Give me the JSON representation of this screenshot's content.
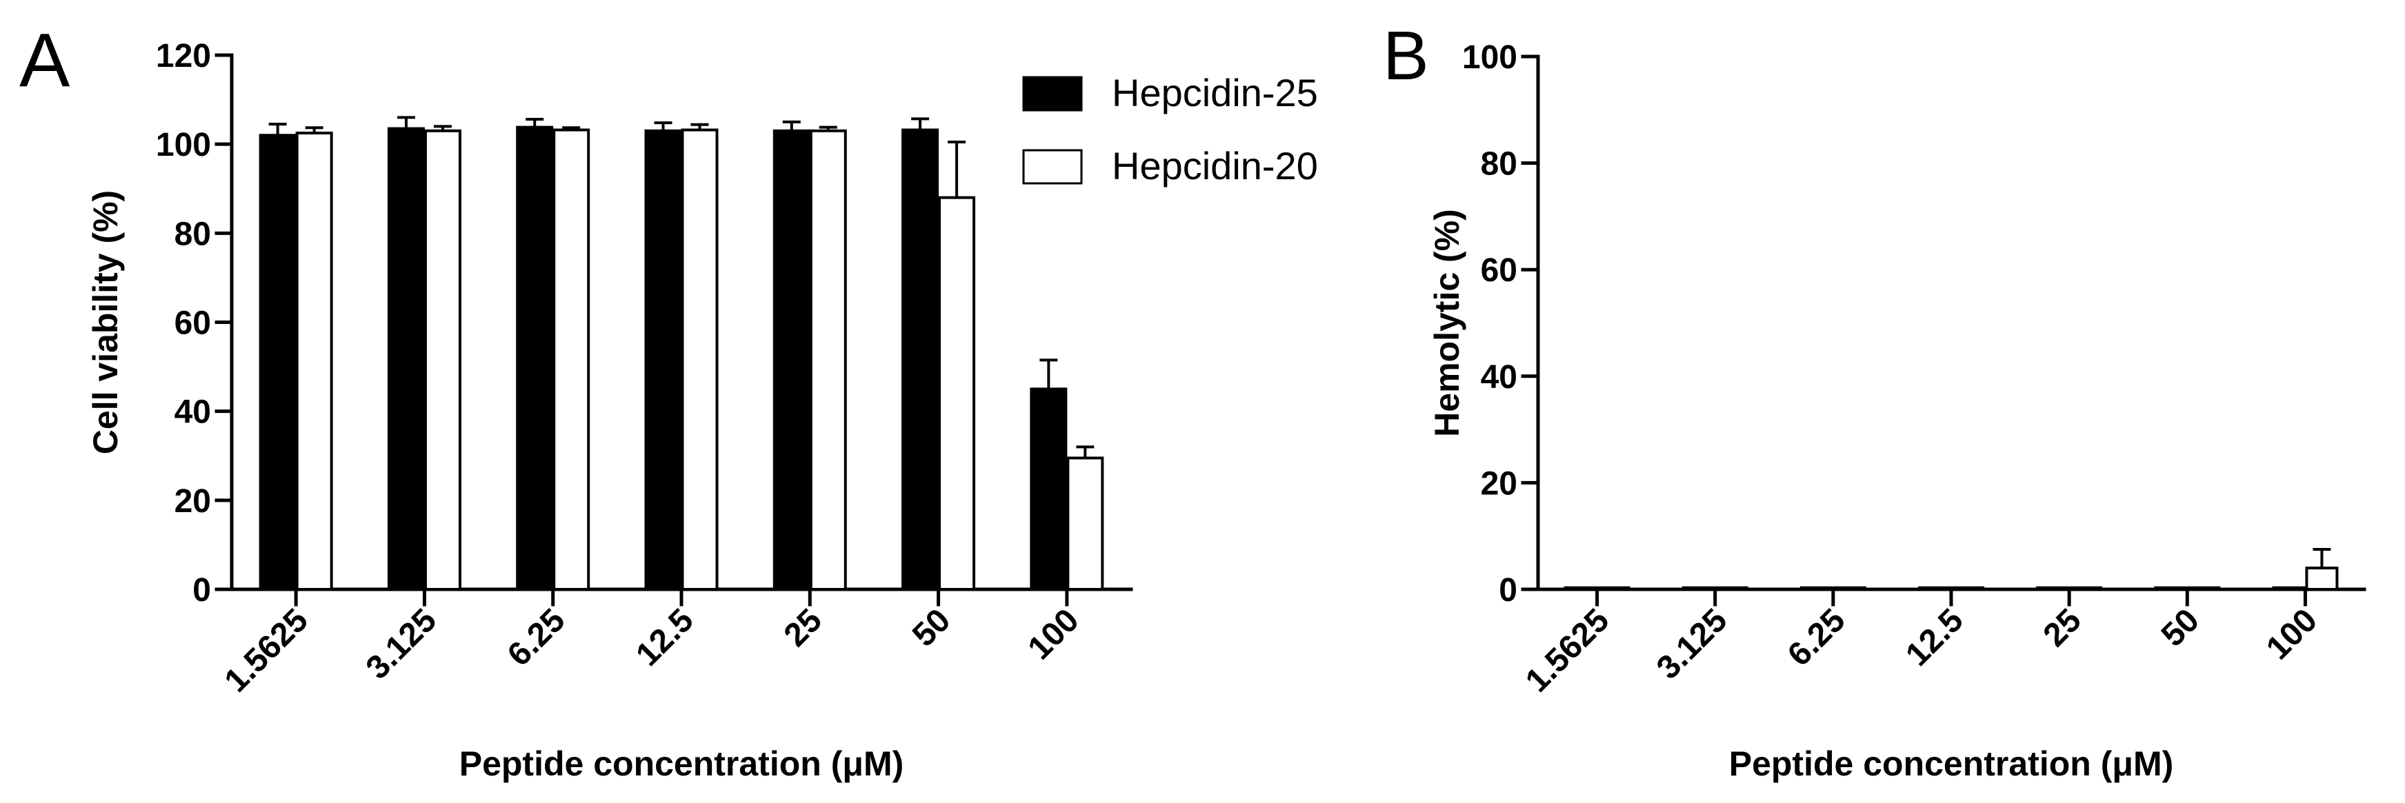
{
  "chart_data": [
    {
      "panel": "A",
      "type": "bar",
      "title": "",
      "xlabel": "Peptide concentration (μM)",
      "ylabel": "Cell viability (%)",
      "categories": [
        "1.5625",
        "3.125",
        "6.25",
        "12.5",
        "25",
        "50",
        "100"
      ],
      "ylim": [
        0,
        120
      ],
      "yticks": [
        "0",
        "20",
        "40",
        "60",
        "80",
        "100",
        "120"
      ],
      "grid": false,
      "legend": "top-right",
      "series": [
        {
          "name": "Hepcidin-25",
          "fill": "#000000",
          "values": [
            102,
            103.5,
            103.8,
            103,
            103,
            103.2,
            45
          ],
          "errors": [
            2.5,
            2.5,
            1.8,
            1.8,
            2,
            2.5,
            6.5
          ]
        },
        {
          "name": "Hepcidin-20",
          "fill": "#ffffff",
          "values": [
            102.5,
            103,
            103.2,
            103.2,
            103,
            88,
            29.5
          ],
          "errors": [
            1.2,
            1,
            0.5,
            1.2,
            0.8,
            12.5,
            2.5
          ]
        }
      ]
    },
    {
      "panel": "B",
      "type": "bar",
      "title": "",
      "xlabel": "Peptide concentration (μM)",
      "ylabel": "Hemolytic (%)",
      "categories": [
        "1.5625",
        "3.125",
        "6.25",
        "12.5",
        "25",
        "50",
        "100"
      ],
      "ylim": [
        0,
        100
      ],
      "yticks": [
        "0",
        "20",
        "40",
        "60",
        "80",
        "100"
      ],
      "grid": false,
      "series": [
        {
          "name": "Hepcidin-25",
          "fill": "#000000",
          "values": [
            0.3,
            0.3,
            0.3,
            0.3,
            0.3,
            0.3,
            0.3
          ],
          "errors": [
            0,
            0,
            0,
            0,
            0,
            0,
            0
          ]
        },
        {
          "name": "Hepcidin-20",
          "fill": "#ffffff",
          "values": [
            0.3,
            0.3,
            0.3,
            0.3,
            0.3,
            0.3,
            4
          ],
          "errors": [
            0,
            0,
            0,
            0,
            0,
            0,
            3.5
          ]
        }
      ]
    }
  ]
}
